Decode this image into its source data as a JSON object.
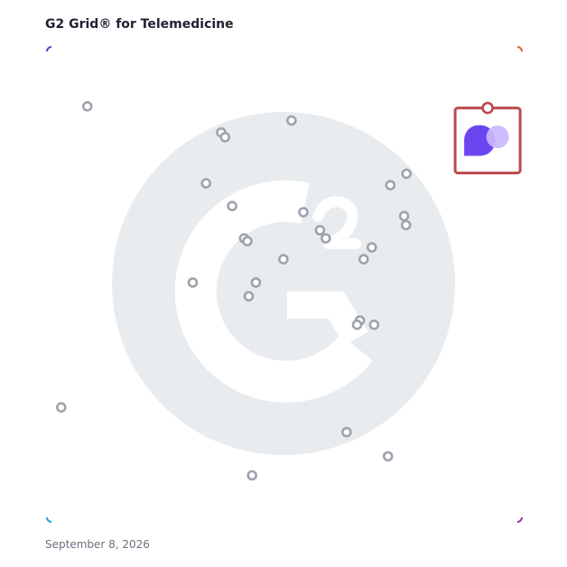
{
  "header": {
    "title": "G2 Grid® for Telemedicine"
  },
  "footer": {
    "date": "September 8, 2026"
  },
  "colors": {
    "border_top_left": "#5a3fd0",
    "border_top_right": "#e85a36",
    "border_bottom_left": "#1a9fe0",
    "border_bottom_right": "#9a2f9e",
    "watermark": "#e9ecef",
    "marker_stroke": "#9ea3ae",
    "highlight_box": "#b94a4f",
    "logo_primary": "#6b46f0",
    "logo_secondary": "#c9b8ff"
  },
  "icons": {
    "watermark": "g2-logo-icon",
    "highlighted_product": "product-logo-icon"
  },
  "chart_data": {
    "type": "scatter",
    "title": "G2 Grid® for Telemedicine",
    "xlabel": "",
    "ylabel": "",
    "xlim": [
      0,
      100
    ],
    "ylim": [
      0,
      100
    ],
    "grid": "quadrants",
    "quadrant_divider": {
      "x": 50,
      "y": 50
    },
    "points": [
      {
        "x": 8.5,
        "y": 87.5
      },
      {
        "x": 36.7,
        "y": 82.0
      },
      {
        "x": 37.5,
        "y": 81.0
      },
      {
        "x": 51.5,
        "y": 84.5
      },
      {
        "x": 33.5,
        "y": 71.3
      },
      {
        "x": 39.0,
        "y": 66.5
      },
      {
        "x": 72.3,
        "y": 70.9
      },
      {
        "x": 75.7,
        "y": 73.3
      },
      {
        "x": 75.2,
        "y": 64.4
      },
      {
        "x": 75.6,
        "y": 62.5
      },
      {
        "x": 54.0,
        "y": 65.2
      },
      {
        "x": 57.5,
        "y": 61.4
      },
      {
        "x": 58.7,
        "y": 59.7
      },
      {
        "x": 68.4,
        "y": 57.8
      },
      {
        "x": 66.7,
        "y": 55.3
      },
      {
        "x": 41.5,
        "y": 59.7
      },
      {
        "x": 42.2,
        "y": 59.1
      },
      {
        "x": 49.8,
        "y": 55.3
      },
      {
        "x": 30.7,
        "y": 50.4
      },
      {
        "x": 44.0,
        "y": 50.4
      },
      {
        "x": 42.5,
        "y": 47.5
      },
      {
        "x": 65.9,
        "y": 42.4
      },
      {
        "x": 65.3,
        "y": 41.5
      },
      {
        "x": 68.9,
        "y": 41.5
      },
      {
        "x": 3.0,
        "y": 24.1
      },
      {
        "x": 63.1,
        "y": 18.9
      },
      {
        "x": 71.8,
        "y": 13.8
      },
      {
        "x": 43.2,
        "y": 9.8
      }
    ],
    "highlighted": {
      "x": 92.8,
      "y": 80.3
    }
  }
}
